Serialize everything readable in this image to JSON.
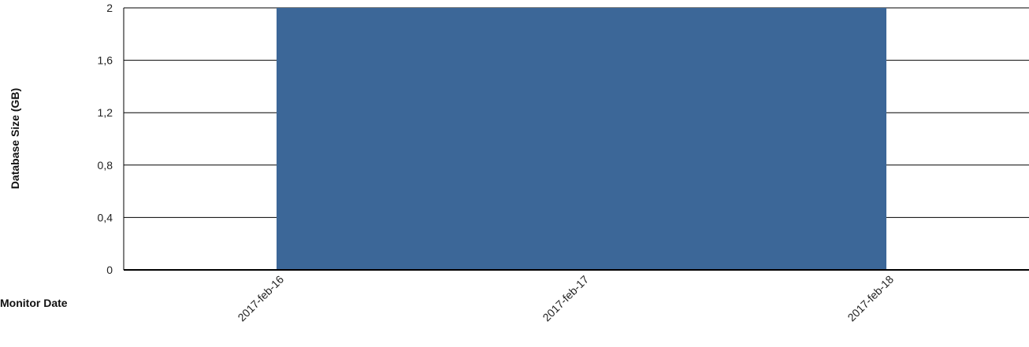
{
  "chart_data": {
    "type": "area",
    "title": "",
    "xlabel": "Monitor Date",
    "ylabel": "Database Size (GB)",
    "x": [
      "2017-feb-16",
      "2017-feb-17",
      "2017-feb-18"
    ],
    "series": [
      {
        "values": [
          2,
          2,
          2
        ]
      }
    ],
    "ylim": [
      0,
      2
    ],
    "yticks": [
      "0",
      "0,4",
      "0,8",
      "1,2",
      "1,6",
      "2"
    ],
    "grid": true,
    "legend": "none",
    "colors": {
      "area": "#3c6798",
      "grid": "#000000",
      "axis": "#000000"
    }
  }
}
